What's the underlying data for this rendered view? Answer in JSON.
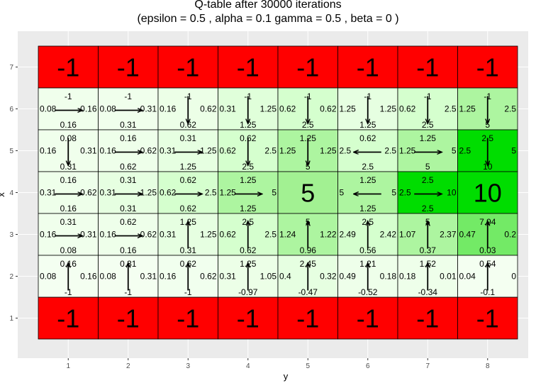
{
  "title_line1": "Q-table after  30000  iterations",
  "title_line2": "(epsilon =  0.5 , alpha =  0.1 gamma =  0.5 , beta =  0 )",
  "chart_data": {
    "type": "heatmap",
    "xlabel": "y",
    "ylabel": "x",
    "x_ticks": [
      "1",
      "2",
      "3",
      "4",
      "5",
      "6",
      "7",
      "8"
    ],
    "y_ticks": [
      "1",
      "2",
      "3",
      "4",
      "5",
      "6",
      "7"
    ],
    "grid": true,
    "colors": {
      "panel": "#ebebeb",
      "grid": "#ffffff",
      "terminal": "#ff0000",
      "goal": "#00dd00",
      "low": "#f7fff4",
      "mid": "#ccffc4",
      "high": "#99ee88"
    },
    "terminal_rows": [
      1,
      7
    ],
    "terminal_value": "-1",
    "cells": [
      {
        "x": 1,
        "y": 6,
        "up": "-1",
        "down": "0.16",
        "left": "0.08",
        "right": "0.16",
        "arrow": "right",
        "level": 0.05
      },
      {
        "x": 2,
        "y": 6,
        "up": "-1",
        "down": "0.31",
        "left": "0.08",
        "right": "0.31",
        "arrow": "right",
        "level": 0.05
      },
      {
        "x": 3,
        "y": 6,
        "up": "-1",
        "down": "0.62",
        "left": "0.16",
        "right": "0.62",
        "arrow": "down",
        "level": 0.08
      },
      {
        "x": 4,
        "y": 6,
        "up": "-1",
        "down": "1.25",
        "left": "0.31",
        "right": "1.25",
        "arrow": "down",
        "level": 0.16
      },
      {
        "x": 5,
        "y": 6,
        "up": "-1",
        "down": "2.5",
        "left": "0.62",
        "right": "0.62",
        "arrow": "down",
        "level": 0.24
      },
      {
        "x": 6,
        "y": 6,
        "up": "-1",
        "down": "1.25",
        "left": "1.25",
        "right": "1.25",
        "arrow": "down",
        "level": 0.12
      },
      {
        "x": 7,
        "y": 6,
        "up": "-1",
        "down": "2.5",
        "left": "0.62",
        "right": "2.5",
        "arrow": "down",
        "level": 0.24
      },
      {
        "x": 8,
        "y": 6,
        "up": "-1",
        "down": "5",
        "left": "1.25",
        "right": "2.5",
        "arrow": "down",
        "level": 0.48
      },
      {
        "x": 1,
        "y": 5,
        "up": "0.08",
        "down": "0.31",
        "left": "0.16",
        "right": "0.31",
        "arrow": "down",
        "level": 0.05
      },
      {
        "x": 2,
        "y": 5,
        "up": "0.16",
        "down": "0.62",
        "left": "0.16",
        "right": "0.62",
        "arrow": "right",
        "level": 0.06
      },
      {
        "x": 3,
        "y": 5,
        "up": "0.31",
        "down": "1.25",
        "left": "0.31",
        "right": "1.25",
        "arrow": "right",
        "level": 0.12
      },
      {
        "x": 4,
        "y": 5,
        "up": "0.62",
        "down": "2.5",
        "left": "0.62",
        "right": "2.5",
        "arrow": "down",
        "level": 0.24
      },
      {
        "x": 5,
        "y": 5,
        "up": "1.25",
        "down": "5",
        "left": "1.25",
        "right": "1.25",
        "arrow": "down",
        "level": 0.48
      },
      {
        "x": 6,
        "y": 5,
        "up": "0.62",
        "down": "2.5",
        "left": "2.5",
        "right": "2.5",
        "arrow": "left",
        "level": 0.24
      },
      {
        "x": 7,
        "y": 5,
        "up": "1.25",
        "down": "5",
        "left": "1.25",
        "right": "5",
        "arrow": "right",
        "level": 0.48
      },
      {
        "x": 8,
        "y": 5,
        "up": "2.5",
        "down": "10",
        "left": "2.5",
        "right": "5",
        "arrow": "down",
        "level": 1.0
      },
      {
        "x": 1,
        "y": 4,
        "up": "0.16",
        "down": "0.16",
        "left": "0.31",
        "right": "0.62",
        "arrow": "right",
        "level": 0.06
      },
      {
        "x": 2,
        "y": 4,
        "up": "0.31",
        "down": "0.31",
        "left": "0.31",
        "right": "1.25",
        "arrow": "right",
        "level": 0.12
      },
      {
        "x": 3,
        "y": 4,
        "up": "0.62",
        "down": "0.62",
        "left": "0.62",
        "right": "2.5",
        "arrow": "right",
        "level": 0.24
      },
      {
        "x": 4,
        "y": 4,
        "up": "1.25",
        "down": "1.25",
        "left": "1.25",
        "right": "5",
        "arrow": "right",
        "level": 0.48
      },
      {
        "x": 5,
        "y": 4,
        "goal": "5",
        "level": 0.55
      },
      {
        "x": 6,
        "y": 4,
        "up": "1.25",
        "down": "1.25",
        "left": "5",
        "right": "5",
        "arrow": "left",
        "level": 0.48
      },
      {
        "x": 7,
        "y": 4,
        "up": "2.5",
        "down": "2.5",
        "left": "2.5",
        "right": "10",
        "arrow": "right",
        "level": 1.0
      },
      {
        "x": 8,
        "y": 4,
        "goal": "10",
        "level": 1.0
      },
      {
        "x": 1,
        "y": 3,
        "up": "0.31",
        "down": "0.08",
        "left": "0.16",
        "right": "0.31",
        "arrow": "right",
        "level": 0.05
      },
      {
        "x": 2,
        "y": 3,
        "up": "0.62",
        "down": "0.16",
        "left": "0.16",
        "right": "0.62",
        "arrow": "right",
        "level": 0.06
      },
      {
        "x": 3,
        "y": 3,
        "up": "1.25",
        "down": "0.31",
        "left": "0.31",
        "right": "1.25",
        "arrow": "up",
        "level": 0.12
      },
      {
        "x": 4,
        "y": 3,
        "up": "2.5",
        "down": "0.62",
        "left": "0.62",
        "right": "2.5",
        "arrow": "up",
        "level": 0.24
      },
      {
        "x": 5,
        "y": 3,
        "up": "5",
        "down": "0.96",
        "left": "1.24",
        "right": "1.22",
        "arrow": "up",
        "level": 0.48
      },
      {
        "x": 6,
        "y": 3,
        "up": "2.5",
        "down": "0.56",
        "left": "2.49",
        "right": "2.42",
        "arrow": "up",
        "level": 0.24
      },
      {
        "x": 7,
        "y": 3,
        "up": "5",
        "down": "0.37",
        "left": "1.07",
        "right": "2.37",
        "arrow": "up",
        "level": 0.48
      },
      {
        "x": 8,
        "y": 3,
        "up": "7.94",
        "down": "0.03",
        "left": "0.47",
        "right": "0.2",
        "arrow": "up",
        "level": 0.7
      },
      {
        "x": 1,
        "y": 2,
        "up": "0.16",
        "down": "-1",
        "left": "0.08",
        "right": "0.16",
        "arrow": "up",
        "level": 0.02
      },
      {
        "x": 2,
        "y": 2,
        "up": "0.31",
        "down": "-1",
        "left": "0.08",
        "right": "0.31",
        "arrow": "up",
        "level": 0.02
      },
      {
        "x": 3,
        "y": 2,
        "up": "0.62",
        "down": "-1",
        "left": "0.16",
        "right": "0.62",
        "arrow": "up",
        "level": 0.04
      },
      {
        "x": 4,
        "y": 2,
        "up": "1.25",
        "down": "-0.97",
        "left": "0.31",
        "right": "1.05",
        "arrow": "up",
        "level": 0.08
      },
      {
        "x": 5,
        "y": 2,
        "up": "2.45",
        "down": "-0.47",
        "left": "0.4",
        "right": "0.32",
        "arrow": "up",
        "level": 0.12
      },
      {
        "x": 6,
        "y": 2,
        "up": "1.21",
        "down": "-0.52",
        "left": "0.49",
        "right": "0.18",
        "arrow": "up",
        "level": 0.06
      },
      {
        "x": 7,
        "y": 2,
        "up": "1.52",
        "down": "-0.34",
        "left": "0.18",
        "right": "0.01",
        "arrow": "up",
        "level": 0.06
      },
      {
        "x": 8,
        "y": 2,
        "up": "0.54",
        "down": "-0.1",
        "left": "0.04",
        "right": "0",
        "arrow": "up",
        "level": 0.02
      }
    ]
  }
}
